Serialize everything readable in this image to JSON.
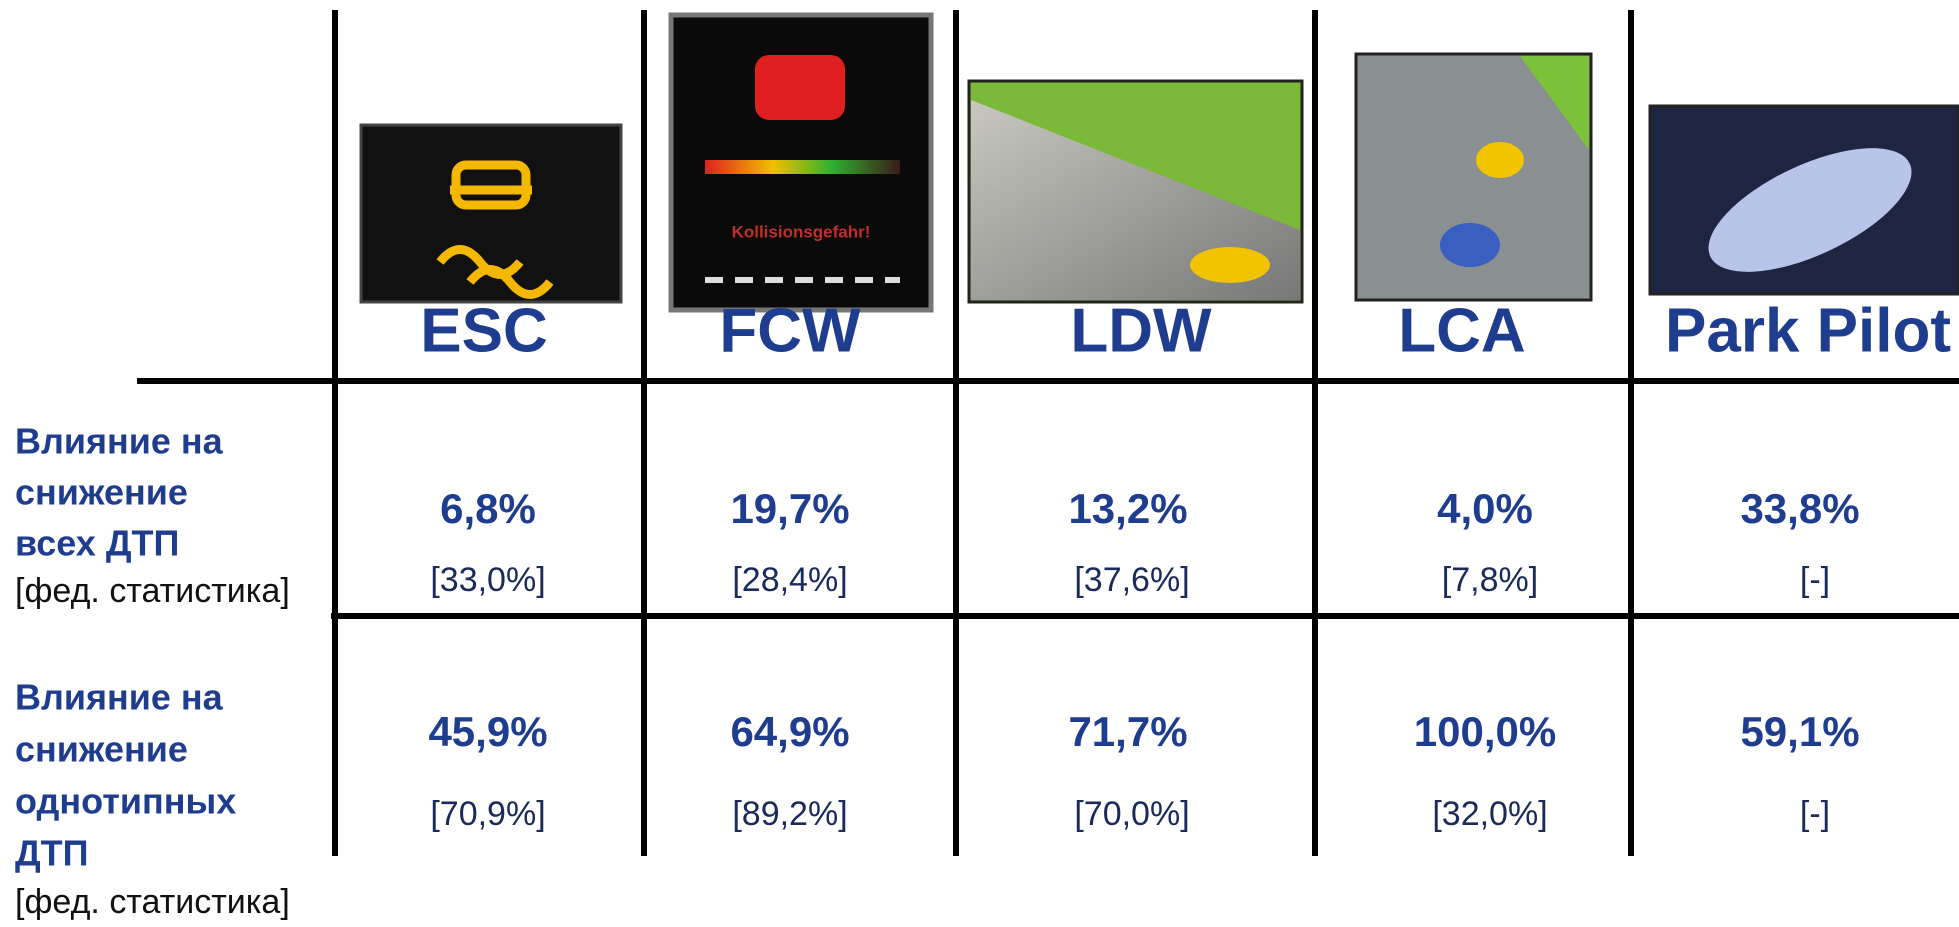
{
  "header": {
    "columns": [
      {
        "name": "ESC"
      },
      {
        "name": "FCW"
      },
      {
        "name": "LDW"
      },
      {
        "name": "LCA"
      },
      {
        "name": "Park Pilot"
      }
    ],
    "fcw_image_text": "Kollisionsgefahr!"
  },
  "rows": [
    {
      "label_lines": [
        "Влияние на",
        "снижение",
        "всех ДТП"
      ],
      "note": "[фед. статистика]",
      "cells": [
        {
          "value": "6,8%",
          "note": "[33,0%]"
        },
        {
          "value": "19,7%",
          "note": "[28,4%]"
        },
        {
          "value": "13,2%",
          "note": "[37,6%]"
        },
        {
          "value": "4,0%",
          "note": "[7,8%]"
        },
        {
          "value": "33,8%",
          "note": "[-]"
        }
      ]
    },
    {
      "label_lines": [
        "Влияние на",
        "снижение",
        "однотипных",
        "ДТП"
      ],
      "note": "[фед. статистика]",
      "cells": [
        {
          "value": "45,9%",
          "note": "[70,9%]"
        },
        {
          "value": "64,9%",
          "note": "[89,2%]"
        },
        {
          "value": "71,7%",
          "note": "[70,0%]"
        },
        {
          "value": "100,0%",
          "note": "[32,0%]"
        },
        {
          "value": "59,1%",
          "note": "[-]"
        }
      ]
    }
  ]
}
